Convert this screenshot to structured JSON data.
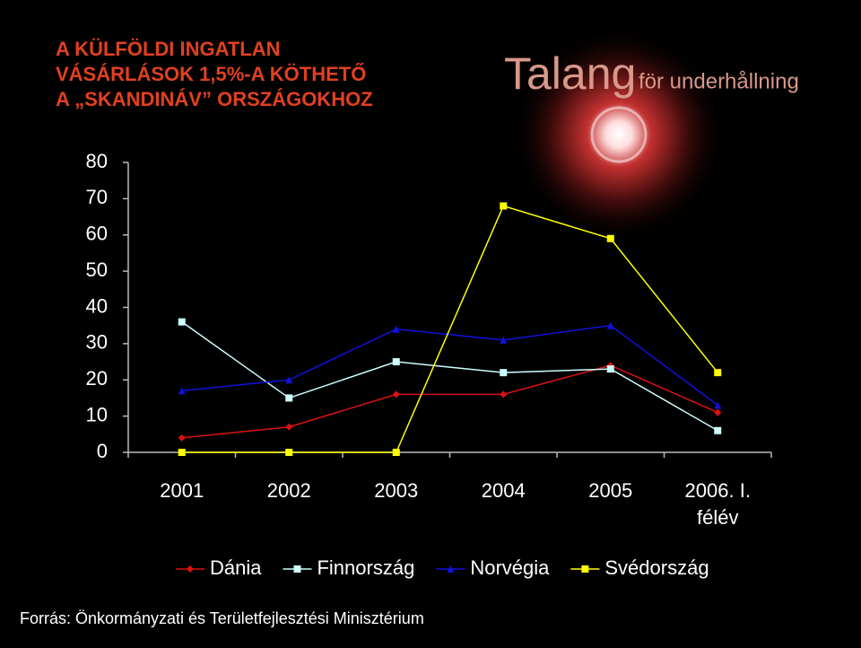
{
  "chart_data": {
    "type": "line",
    "title": [
      "A KÜLFÖLDI INGATLAN",
      "VÁSÁRLÁSOK 1,5%-A KÖTHETŐ",
      "A „SKANDINÁV” ORSZÁGOKHOZ"
    ],
    "logo": {
      "name": "Talang",
      "tagline": "för underhållning"
    },
    "categories": [
      "2001",
      "2002",
      "2003",
      "2004",
      "2005",
      "2006. I. félév"
    ],
    "series": [
      {
        "name": "Dánia",
        "color": "#dd1111",
        "marker": "diamond",
        "values": [
          4,
          7,
          16,
          16,
          24,
          11
        ]
      },
      {
        "name": "Finnország",
        "color": "#ccffff",
        "marker": "square",
        "values": [
          36,
          15,
          25,
          22,
          23,
          6
        ]
      },
      {
        "name": "Norvégia",
        "color": "#1111dd",
        "marker": "triangle",
        "values": [
          17,
          20,
          34,
          31,
          35,
          13
        ]
      },
      {
        "name": "Svédország",
        "color": "#ffff00",
        "marker": "square",
        "values": [
          0,
          0,
          0,
          68,
          59,
          22
        ]
      }
    ],
    "ylim": [
      0,
      80
    ],
    "yticks": [
      0,
      10,
      20,
      30,
      40,
      50,
      60,
      70,
      80
    ],
    "legend": "bottom",
    "source": "Forrás: Önkormányzati és Területfejlesztési Minisztérium"
  }
}
